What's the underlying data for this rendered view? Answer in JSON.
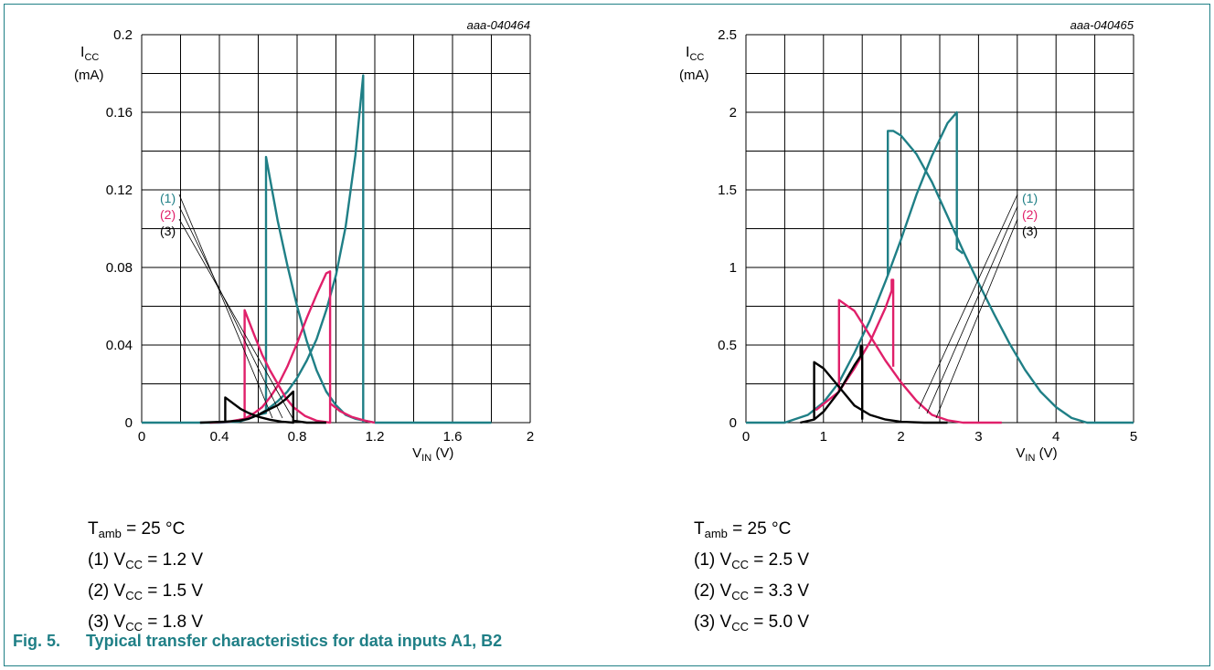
{
  "chart_data": [
    {
      "type": "line",
      "code": "aaa-040464",
      "ylabel_main": "I",
      "ylabel_sub": "CC",
      "ylabel_unit": "(mA)",
      "xlabel_main": "V",
      "xlabel_sub": "IN",
      "xlabel_unit": " (V)",
      "xlim": [
        0,
        2
      ],
      "ylim": [
        0,
        0.2
      ],
      "x_ticks": [
        "0",
        "0.4",
        "0.8",
        "1.2",
        "1.6",
        "2"
      ],
      "y_ticks": [
        "0",
        "0.04",
        "0.08",
        "0.12",
        "0.16",
        "0.2"
      ],
      "legend_labels": [
        "(1)",
        "(2)",
        "(3)"
      ],
      "series": [
        {
          "label": "(1)",
          "color": "#1f7f86",
          "points": [
            [
              0,
              0
            ],
            [
              0.4,
              0
            ],
            [
              0.5,
              0.0005
            ],
            [
              0.55,
              0.002
            ],
            [
              0.6,
              0.004
            ],
            [
              0.64,
              0.005
            ],
            [
              0.64,
              0.137
            ],
            [
              0.7,
              0.104
            ],
            [
              0.75,
              0.081
            ],
            [
              0.8,
              0.06
            ],
            [
              0.85,
              0.042
            ],
            [
              0.9,
              0.027
            ],
            [
              0.95,
              0.016
            ],
            [
              1.0,
              0.009
            ],
            [
              1.05,
              0.004
            ],
            [
              1.1,
              0.002
            ],
            [
              1.2,
              0
            ],
            [
              1.8,
              0
            ]
          ]
        },
        {
          "label": "(1)",
          "color": "#1f7f86",
          "points": [
            [
              0.55,
              0.002
            ],
            [
              0.6,
              0.004
            ],
            [
              0.65,
              0.007
            ],
            [
              0.7,
              0.011
            ],
            [
              0.75,
              0.016
            ],
            [
              0.8,
              0.023
            ],
            [
              0.85,
              0.032
            ],
            [
              0.9,
              0.043
            ],
            [
              0.95,
              0.058
            ],
            [
              1.0,
              0.076
            ],
            [
              1.05,
              0.101
            ],
            [
              1.1,
              0.138
            ],
            [
              1.14,
              0.179
            ],
            [
              1.14,
              0
            ]
          ]
        },
        {
          "label": "(2)",
          "color": "#e0206a",
          "points": [
            [
              0.35,
              0
            ],
            [
              0.45,
              0.0005
            ],
            [
              0.53,
              0.002
            ],
            [
              0.53,
              0.058
            ],
            [
              0.58,
              0.045
            ],
            [
              0.62,
              0.035
            ],
            [
              0.66,
              0.027
            ],
            [
              0.7,
              0.02
            ],
            [
              0.74,
              0.013
            ],
            [
              0.78,
              0.008
            ],
            [
              0.84,
              0.0035
            ],
            [
              0.9,
              0.001
            ],
            [
              0.97,
              0
            ],
            [
              0.97,
              0.078
            ],
            [
              0.95,
              0.077
            ],
            [
              0.9,
              0.066
            ],
            [
              0.85,
              0.054
            ],
            [
              0.8,
              0.041
            ],
            [
              0.75,
              0.029
            ],
            [
              0.7,
              0.019
            ],
            [
              0.66,
              0.013
            ],
            [
              0.62,
              0.008
            ],
            [
              0.58,
              0.005
            ],
            [
              0.53,
              0.002
            ]
          ]
        },
        {
          "label": "(2)",
          "color": "#e0206a",
          "points": [
            [
              0.97,
              0.01
            ],
            [
              1.02,
              0.006
            ],
            [
              1.08,
              0.003
            ],
            [
              1.15,
              0.001
            ],
            [
              1.2,
              0
            ]
          ]
        },
        {
          "label": "(3)",
          "color": "#000000",
          "points": [
            [
              0.3,
              0
            ],
            [
              0.43,
              0.0005
            ],
            [
              0.43,
              0.013
            ],
            [
              0.47,
              0.01
            ],
            [
              0.51,
              0.007
            ],
            [
              0.55,
              0.005
            ],
            [
              0.6,
              0.003
            ],
            [
              0.66,
              0.0015
            ],
            [
              0.72,
              0.0005
            ],
            [
              0.78,
              0
            ],
            [
              0.78,
              0.016
            ],
            [
              0.74,
              0.012
            ],
            [
              0.7,
              0.009
            ],
            [
              0.66,
              0.007
            ],
            [
              0.6,
              0.004
            ],
            [
              0.55,
              0.002
            ],
            [
              0.5,
              0.001
            ],
            [
              0.43,
              0.0005
            ]
          ]
        },
        {
          "label": "(3)",
          "color": "#000000",
          "points": [
            [
              0.78,
              0.001
            ],
            [
              0.85,
              0
            ],
            [
              0.95,
              0
            ]
          ]
        }
      ]
    },
    {
      "type": "line",
      "code": "aaa-040465",
      "ylabel_main": "I",
      "ylabel_sub": "CC",
      "ylabel_unit": "(mA)",
      "xlabel_main": "V",
      "xlabel_sub": "IN",
      "xlabel_unit": " (V)",
      "xlim": [
        0,
        5
      ],
      "ylim": [
        0,
        2.5
      ],
      "x_ticks": [
        "0",
        "1",
        "2",
        "3",
        "4",
        "5"
      ],
      "y_ticks": [
        "0",
        "0.5",
        "1",
        "1.5",
        "2",
        "2.5"
      ],
      "legend_labels": [
        "(1)",
        "(2)",
        "(3)"
      ],
      "series": [
        {
          "label": "(1)",
          "color": "#1f7f86",
          "points": [
            [
              0,
              0
            ],
            [
              0.5,
              0
            ],
            [
              0.8,
              0.05
            ],
            [
              1.0,
              0.13
            ],
            [
              1.2,
              0.26
            ],
            [
              1.4,
              0.45
            ],
            [
              1.6,
              0.66
            ],
            [
              1.8,
              0.91
            ],
            [
              1.83,
              0.95
            ],
            [
              1.83,
              1.88
            ],
            [
              1.9,
              1.88
            ],
            [
              2.0,
              1.85
            ],
            [
              2.2,
              1.73
            ],
            [
              2.4,
              1.55
            ],
            [
              2.6,
              1.33
            ],
            [
              2.8,
              1.11
            ],
            [
              3.0,
              0.9
            ],
            [
              3.2,
              0.7
            ],
            [
              3.4,
              0.51
            ],
            [
              3.6,
              0.34
            ],
            [
              3.8,
              0.2
            ],
            [
              4.0,
              0.1
            ],
            [
              4.2,
              0.03
            ],
            [
              4.4,
              0
            ],
            [
              5.0,
              0
            ]
          ]
        },
        {
          "label": "(1)",
          "color": "#1f7f86",
          "points": [
            [
              1.83,
              0.95
            ],
            [
              2.0,
              1.18
            ],
            [
              2.2,
              1.47
            ],
            [
              2.4,
              1.72
            ],
            [
              2.6,
              1.93
            ],
            [
              2.72,
              2.0
            ],
            [
              2.72,
              1.12
            ],
            [
              2.8,
              1.09
            ]
          ]
        },
        {
          "label": "(2)",
          "color": "#e0206a",
          "points": [
            [
              0.9,
              0.08
            ],
            [
              1.2,
              0.2
            ],
            [
              1.2,
              0.79
            ],
            [
              1.4,
              0.72
            ],
            [
              1.6,
              0.56
            ],
            [
              1.8,
              0.4
            ],
            [
              2.0,
              0.26
            ],
            [
              2.2,
              0.14
            ],
            [
              2.4,
              0.05
            ],
            [
              2.6,
              0.015
            ],
            [
              2.8,
              0
            ],
            [
              3.3,
              0
            ]
          ]
        },
        {
          "label": "(2)",
          "color": "#e0206a",
          "points": [
            [
              1.2,
              0.2
            ],
            [
              1.4,
              0.35
            ],
            [
              1.6,
              0.52
            ],
            [
              1.8,
              0.74
            ],
            [
              1.88,
              0.85
            ],
            [
              1.88,
              0.92
            ],
            [
              1.9,
              0.92
            ],
            [
              1.9,
              0.36
            ]
          ]
        },
        {
          "label": "(3)",
          "color": "#000000",
          "points": [
            [
              0.7,
              0
            ],
            [
              0.88,
              0.02
            ],
            [
              0.88,
              0.39
            ],
            [
              1.0,
              0.35
            ],
            [
              1.2,
              0.23
            ],
            [
              1.4,
              0.11
            ],
            [
              1.6,
              0.05
            ],
            [
              1.8,
              0.02
            ],
            [
              2.0,
              0.005
            ],
            [
              2.3,
              0
            ],
            [
              2.6,
              0
            ]
          ]
        },
        {
          "label": "(3)",
          "color": "#000000",
          "points": [
            [
              0.88,
              0.02
            ],
            [
              1.0,
              0.07
            ],
            [
              1.2,
              0.2
            ],
            [
              1.4,
              0.37
            ],
            [
              1.48,
              0.43
            ],
            [
              1.48,
              0.49
            ],
            [
              1.5,
              0.49
            ],
            [
              1.5,
              0.02
            ]
          ]
        }
      ]
    }
  ],
  "notes": [
    {
      "tamb_main": "T",
      "tamb_sub": "amb",
      "tamb_value": " = 25 °C",
      "rows": [
        {
          "prefix": "(1) V",
          "sub": "CC",
          "value": " = 1.2 V"
        },
        {
          "prefix": "(2) V",
          "sub": "CC",
          "value": " = 1.5 V"
        },
        {
          "prefix": "(3) V",
          "sub": "CC",
          "value": " = 1.8 V"
        }
      ]
    },
    {
      "tamb_main": "T",
      "tamb_sub": "amb",
      "tamb_value": " = 25 °C",
      "rows": [
        {
          "prefix": "(1) V",
          "sub": "CC",
          "value": " = 2.5 V"
        },
        {
          "prefix": "(2) V",
          "sub": "CC",
          "value": " = 3.3 V"
        },
        {
          "prefix": "(3) V",
          "sub": "CC",
          "value": " = 5.0 V"
        }
      ]
    }
  ],
  "caption": {
    "fig": "Fig. 5.",
    "title": "Typical transfer characteristics for data inputs A1, B2"
  },
  "colors": {
    "series1": "#1f7f86",
    "series2": "#e0206a",
    "series3": "#000000",
    "frame": "#1f7f86"
  }
}
